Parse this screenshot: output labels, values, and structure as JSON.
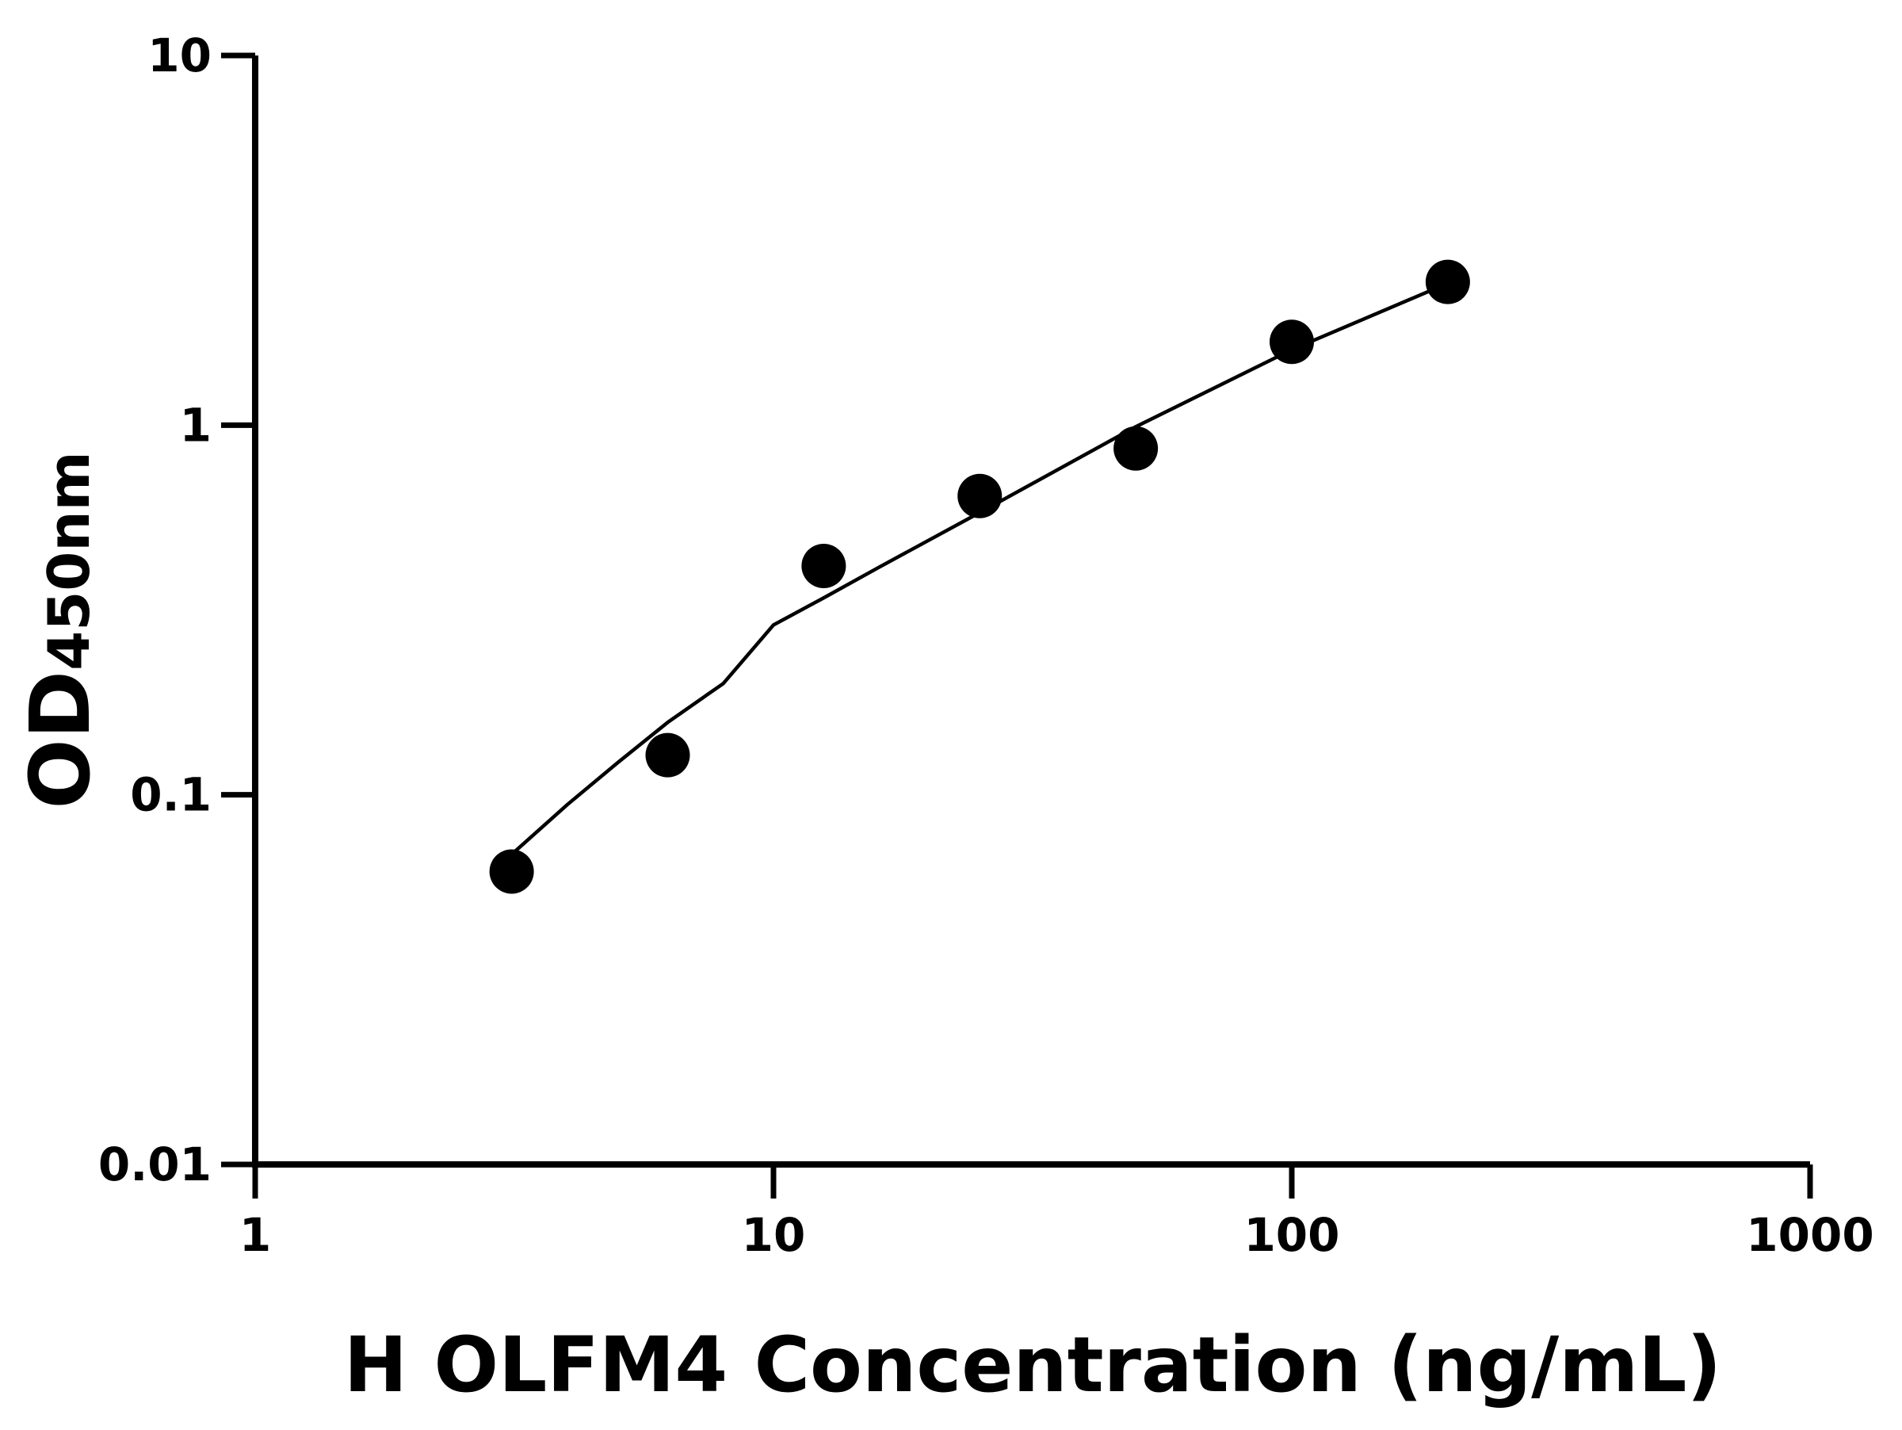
{
  "chart_data": {
    "type": "scatter",
    "x_label": "H OLFM4 Concentration (ng/mL)",
    "y_label": {
      "text": "OD",
      "subscript": "450nm"
    },
    "x": [
      3.125,
      6.25,
      12.5,
      25,
      50,
      100,
      200
    ],
    "values": [
      0.062,
      0.128,
      0.416,
      0.643,
      0.865,
      1.68,
      2.44
    ],
    "color": "#000000",
    "fit": {
      "x": [
        3.125,
        4,
        5,
        6.25,
        8,
        10,
        12.5,
        16,
        25,
        50,
        100,
        200
      ],
      "values": [
        0.069,
        0.094,
        0.122,
        0.157,
        0.2,
        0.288,
        0.341,
        0.413,
        0.58,
        0.99,
        1.6,
        2.42
      ],
      "color": "#000000"
    },
    "xscale": "log",
    "yscale": "log",
    "xlim": [
      1,
      1000
    ],
    "ylim": [
      0.01,
      10
    ],
    "xticks": [
      1,
      10,
      100,
      1000
    ],
    "yticks": [
      0.01,
      0.1,
      1,
      10
    ]
  }
}
